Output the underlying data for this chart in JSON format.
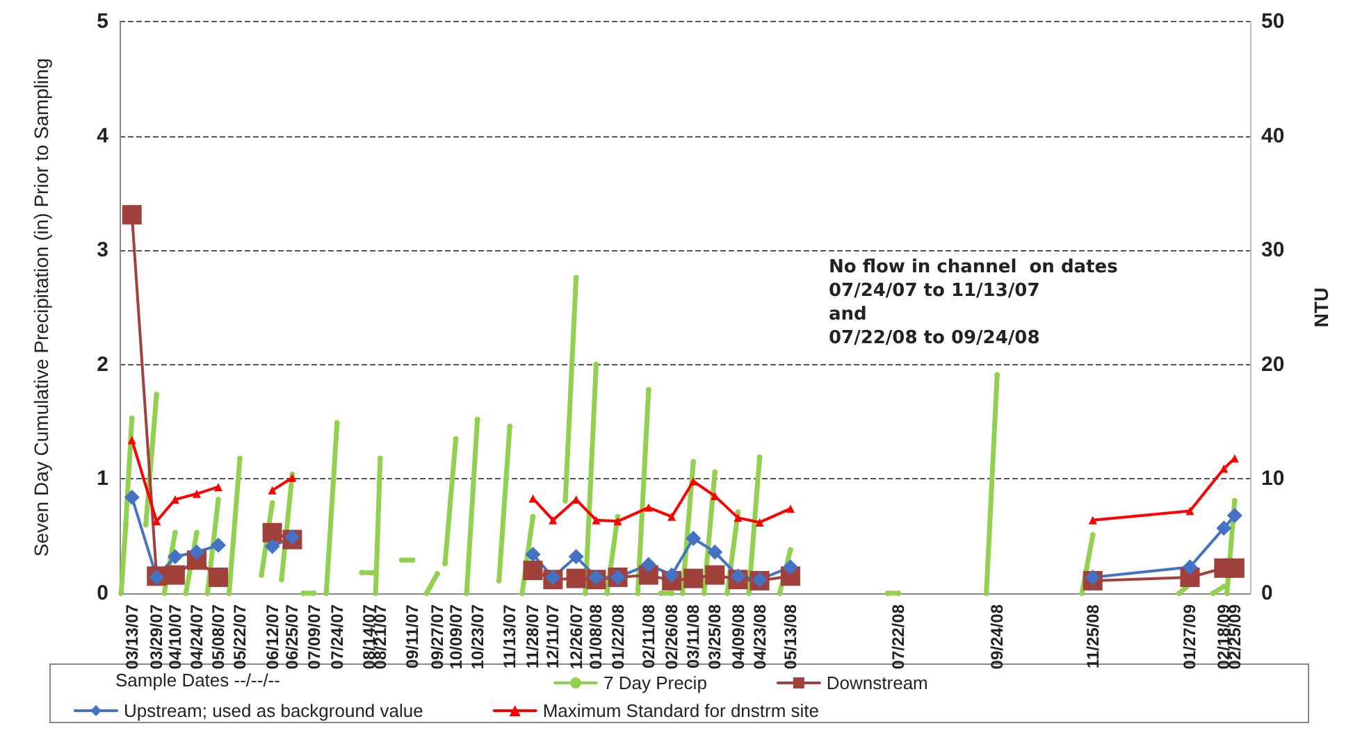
{
  "chart_data": {
    "type": "line",
    "ylabel": "Seven Day Cumulative Precipitation (in) Prior to Sampling",
    "y2label": "NTU",
    "xlabel": "Sample Dates --/--/--",
    "annotations": [
      "No flow in channel  on dates\n07/24/07 to 11/13/07\nand\n07/22/08 to 09/24/08"
    ],
    "xlim": [
      "2007-03-05",
      "2009-03-07"
    ],
    "xticks": [
      {
        "value": "2007-03-13",
        "label": "03/13/07"
      },
      {
        "value": "2007-03-29",
        "label": "03/29/07"
      },
      {
        "value": "2007-04-10",
        "label": "04/10/07"
      },
      {
        "value": "2007-04-24",
        "label": "04/24/07"
      },
      {
        "value": "2007-05-08",
        "label": "05/08/07"
      },
      {
        "value": "2007-05-22",
        "label": "05/22/07"
      },
      {
        "value": "2007-06-12",
        "label": "06/12/07"
      },
      {
        "value": "2007-06-25",
        "label": "06/25/07"
      },
      {
        "value": "2007-07-09",
        "label": "07/09/07"
      },
      {
        "value": "2007-07-24",
        "label": "07/24/07"
      },
      {
        "value": "2007-08-14",
        "label": "08/14/07"
      },
      {
        "value": "2007-08-21",
        "label": "08/21/07"
      },
      {
        "value": "2007-09-11",
        "label": "09/11/07"
      },
      {
        "value": "2007-09-27",
        "label": "09/27/07"
      },
      {
        "value": "2007-10-09",
        "label": "10/09/07"
      },
      {
        "value": "2007-10-23",
        "label": "10/23/07"
      },
      {
        "value": "2007-11-13",
        "label": "11/13/07"
      },
      {
        "value": "2007-11-28",
        "label": "11/28/07"
      },
      {
        "value": "2007-12-11",
        "label": "12/11/07"
      },
      {
        "value": "2007-12-26",
        "label": "12/26/07"
      },
      {
        "value": "2008-01-08",
        "label": "01/08/08"
      },
      {
        "value": "2008-01-22",
        "label": "01/22/08"
      },
      {
        "value": "2008-02-11",
        "label": "02/11/08"
      },
      {
        "value": "2008-02-26",
        "label": "02/26/08"
      },
      {
        "value": "2008-03-11",
        "label": "03/11/08"
      },
      {
        "value": "2008-03-25",
        "label": "03/25/08"
      },
      {
        "value": "2008-04-09",
        "label": "04/09/08"
      },
      {
        "value": "2008-04-23",
        "label": "04/23/08"
      },
      {
        "value": "2008-05-13",
        "label": "05/13/08"
      },
      {
        "value": "2008-07-22",
        "label": "07/22/08"
      },
      {
        "value": "2008-09-24",
        "label": "09/24/08"
      },
      {
        "value": "2008-11-25",
        "label": "11/25/08"
      },
      {
        "value": "2009-01-27",
        "label": "01/27/09"
      },
      {
        "value": "2009-02-18",
        "label": "02/18/09"
      },
      {
        "value": "2009-02-25",
        "label": "02/25/09"
      }
    ],
    "ylim": [
      0,
      5
    ],
    "yticks": [
      0,
      1,
      2,
      3,
      4,
      5
    ],
    "y2lim": [
      0,
      50
    ],
    "y2ticks": [
      0,
      10,
      20,
      30,
      40,
      50
    ],
    "grid": "y",
    "legend": "bottom",
    "x": [
      "2007-03-13",
      "2007-03-29",
      "2007-04-10",
      "2007-04-24",
      "2007-05-08",
      "2007-05-22",
      "2007-06-12",
      "2007-06-25",
      "2007-07-09",
      "2007-11-28",
      "2007-12-11",
      "2007-12-26",
      "2008-01-08",
      "2008-01-22",
      "2008-02-11",
      "2008-02-26",
      "2008-03-11",
      "2008-03-25",
      "2008-04-09",
      "2008-04-23",
      "2008-05-13",
      "2008-07-22",
      "2008-11-25",
      "2009-01-27",
      "2009-02-18",
      "2009-02-25"
    ],
    "series": [
      {
        "name": "7 Day Precip",
        "color": "#92d050",
        "marker": "circle",
        "x": [
          "2007-03-06",
          "2007-03-09",
          "2007-03-13",
          "2007-03-14",
          "2007-03-22",
          "2007-03-29",
          "2007-03-30",
          "2007-04-03",
          "2007-04-10",
          "2007-04-11",
          "2007-04-17",
          "2007-04-24",
          "2007-04-25",
          "2007-05-01",
          "2007-05-08",
          "2007-05-09",
          "2007-05-15",
          "2007-05-22",
          "2007-05-23",
          "2007-06-05",
          "2007-06-12",
          "2007-06-13",
          "2007-06-18",
          "2007-06-25",
          "2007-06-26",
          "2007-07-02",
          "2007-07-09",
          "2007-07-10",
          "2007-07-17",
          "2007-07-24",
          "2007-07-25",
          "2007-08-09",
          "2007-08-16",
          "2007-08-17",
          "2007-08-18",
          "2007-08-21",
          "2007-08-22",
          "2007-09-04",
          "2007-09-11",
          "2007-09-12",
          "2007-09-20",
          "2007-09-27",
          "2007-09-28",
          "2007-10-02",
          "2007-10-09",
          "2007-10-10",
          "2007-10-16",
          "2007-10-23",
          "2007-10-24",
          "2007-11-06",
          "2007-11-13",
          "2007-11-14",
          "2007-11-21",
          "2007-11-28",
          "2007-11-29",
          "2007-12-19",
          "2007-12-26",
          "2007-12-27",
          "2008-01-01",
          "2008-01-08",
          "2008-01-09",
          "2008-01-15",
          "2008-01-22",
          "2008-01-23",
          "2008-02-04",
          "2008-02-11",
          "2008-02-12",
          "2008-02-19",
          "2008-02-26",
          "2008-02-27",
          "2008-03-04",
          "2008-03-11",
          "2008-03-12",
          "2008-03-18",
          "2008-03-25",
          "2008-03-26",
          "2008-04-02",
          "2008-04-09",
          "2008-04-10",
          "2008-04-16",
          "2008-04-23",
          "2008-04-24",
          "2008-05-06",
          "2008-05-13",
          "2008-05-14",
          "2008-07-15",
          "2008-07-22",
          "2008-07-23",
          "2008-09-17",
          "2008-09-24",
          "2008-09-25",
          "2008-11-18",
          "2008-11-25",
          "2008-11-26",
          "2009-01-20",
          "2009-01-27",
          "2009-01-28",
          "2009-02-11",
          "2009-02-18",
          "2009-02-19",
          "2009-02-20",
          "2009-02-25"
        ],
        "values": [
          0,
          0.6,
          1.53,
          null,
          0.6,
          1.74,
          null,
          0,
          0.53,
          null,
          0,
          0.53,
          null,
          0,
          0.82,
          null,
          0,
          1.18,
          null,
          0.16,
          0.79,
          null,
          0.12,
          1.04,
          null,
          0,
          0,
          null,
          0,
          1.49,
          null,
          0.18,
          0.18,
          null,
          0,
          1.18,
          null,
          0.29,
          0.29,
          null,
          0,
          0.17,
          null,
          0.26,
          1.35,
          null,
          0,
          1.52,
          null,
          0.11,
          1.46,
          null,
          0,
          0.67,
          null,
          0.81,
          2.76,
          null,
          0,
          2.0,
          null,
          0,
          0.67,
          null,
          0,
          1.78,
          null,
          0,
          0,
          null,
          0,
          1.15,
          null,
          0,
          1.06,
          null,
          0,
          0.71,
          null,
          0,
          1.19,
          null,
          0,
          0.38,
          null,
          0,
          0,
          null,
          0,
          1.91,
          null,
          0,
          0.51,
          null,
          0,
          0.08,
          null,
          0,
          0.06,
          null,
          0,
          0.81
        ]
      },
      {
        "name": "Downstream",
        "color": "#a0413c",
        "marker": "square",
        "axis": "y2",
        "values": [
          33.1,
          1.5,
          1.6,
          2.9,
          1.4,
          null,
          5.3,
          4.7,
          null,
          2.0,
          1.2,
          1.3,
          1.2,
          1.4,
          1.6,
          1.1,
          1.3,
          1.6,
          1.2,
          1.1,
          1.5,
          null,
          1.1,
          1.4,
          2.2,
          2.2
        ]
      },
      {
        "name": "Upstream; used as background value",
        "color": "#4472c4",
        "marker": "diamond",
        "axis": "y2",
        "values": [
          8.4,
          1.4,
          3.2,
          3.6,
          4.2,
          null,
          4.1,
          4.9,
          null,
          3.4,
          1.4,
          3.2,
          1.4,
          1.4,
          2.5,
          1.6,
          4.8,
          3.6,
          1.5,
          1.2,
          2.3,
          null,
          1.4,
          2.3,
          5.7,
          6.8
        ]
      },
      {
        "name": "Maximum Standard for dnstrm site",
        "color": "#ff0000",
        "marker": "triangle",
        "axis": "y2",
        "values": [
          13.4,
          6.3,
          8.2,
          8.7,
          9.3,
          null,
          9.0,
          10.1,
          null,
          8.3,
          6.4,
          8.2,
          6.4,
          6.3,
          7.5,
          6.7,
          9.8,
          8.5,
          6.6,
          6.2,
          7.4,
          null,
          6.4,
          7.2,
          10.9,
          11.8
        ]
      }
    ]
  }
}
